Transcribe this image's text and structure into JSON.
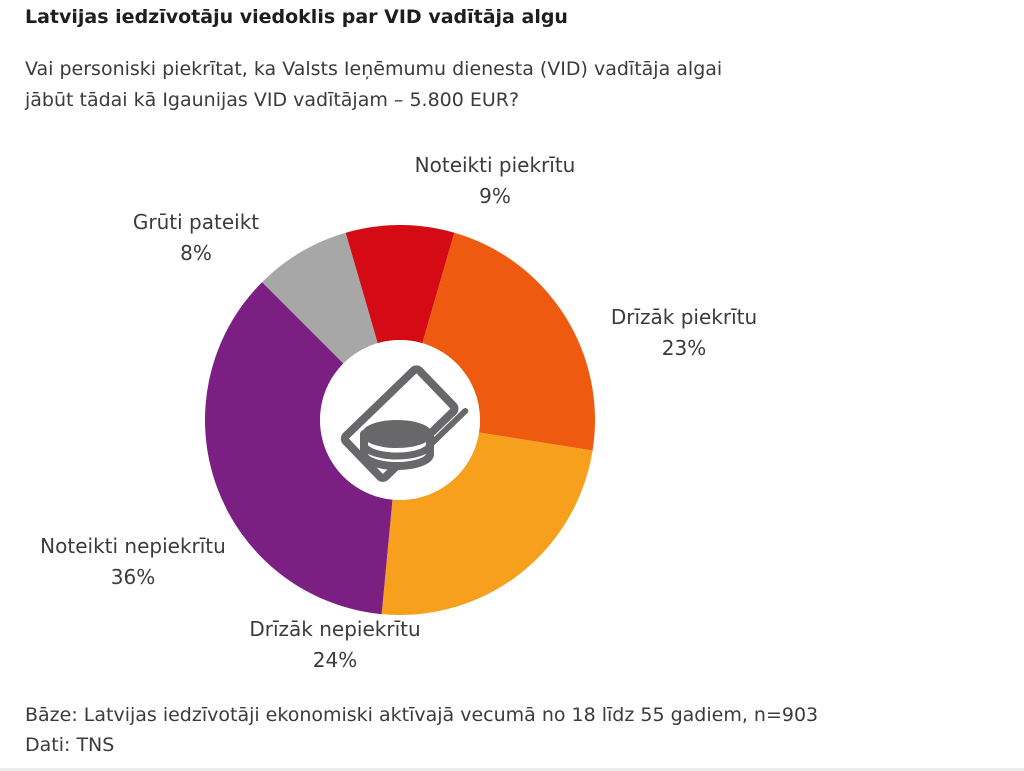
{
  "page": {
    "title": "Latvijas iedzīvotāju viedoklis par VID vadītāja algu",
    "question": "Vai personiski piekrītat, ka Valsts Ieņēmumu dienesta (VID) vadītāja algai\njābūt tādai kā Igaunijas VID vadītājam – 5.800 EUR?",
    "footer": {
      "base_line": "Bāze: Latvijas iedzīvotāji ekonomiski aktīvajā vecumā no 18 līdz 55 gadiem, n=903",
      "source_line": "Dati: TNS"
    }
  },
  "chart_data": {
    "type": "pie",
    "subtype": "donut",
    "title": "Latvijas iedzīvotāju viedoklis par VID vadītāja algu",
    "categories": [
      "Noteikti piekrītu",
      "Drīzāk piekrītu",
      "Drīzāk nepiekrītu",
      "Noteikti nepiekrītu",
      "Grūti pateikt"
    ],
    "values": [
      9,
      23,
      24,
      36,
      8
    ],
    "value_labels": [
      "9%",
      "23%",
      "24%",
      "36%",
      "8%"
    ],
    "unit": "%",
    "colors": [
      "#d40a14",
      "#ee5a0f",
      "#f6a01e",
      "#7c1f83",
      "#a8a7a8"
    ],
    "start_angle_deg": -16.2,
    "direction": "clockwise",
    "inner_radius_ratio": 0.41,
    "legend": "none",
    "labels_position": "outside",
    "center_icon": "money-icon",
    "icon_color": "#68686b"
  }
}
